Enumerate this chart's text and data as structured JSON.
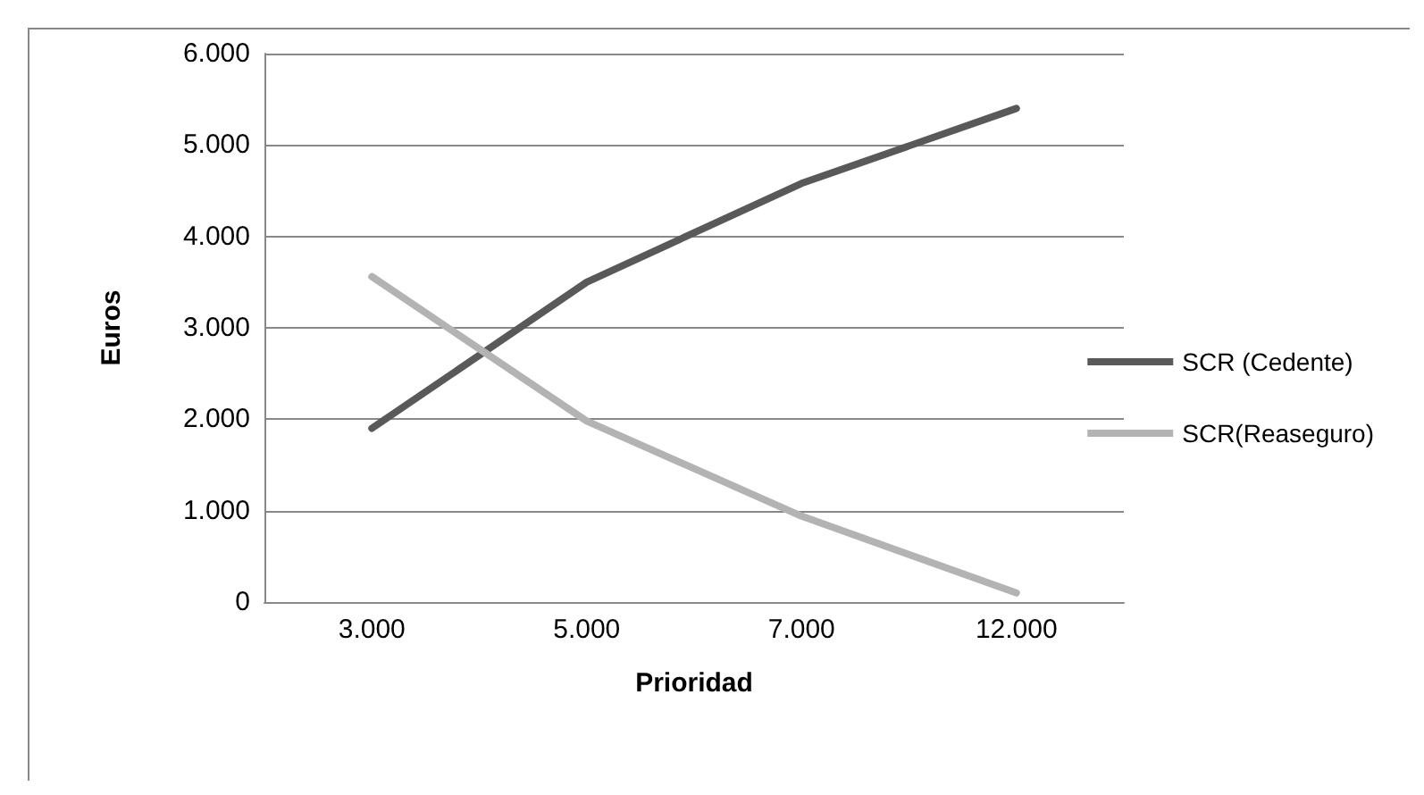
{
  "chart_data": {
    "type": "line",
    "xlabel": "Prioridad",
    "ylabel": "Euros",
    "categories": [
      "3.000",
      "5.000",
      "7.000",
      "12.000"
    ],
    "series": [
      {
        "name": "SCR (Cedente)",
        "color": "#595959",
        "values": [
          1900,
          3500,
          4580,
          5400
        ]
      },
      {
        "name": "SCR(Reaseguro)",
        "color": "#b3b3b3",
        "values": [
          3560,
          1980,
          940,
          100
        ]
      }
    ],
    "ylim": [
      0,
      6000
    ],
    "yticks": [
      {
        "value": 0,
        "label": "0"
      },
      {
        "value": 1000,
        "label": "1.000"
      },
      {
        "value": 2000,
        "label": "2.000"
      },
      {
        "value": 3000,
        "label": "3.000"
      },
      {
        "value": 4000,
        "label": "4.000"
      },
      {
        "value": 5000,
        "label": "5.000"
      },
      {
        "value": 6000,
        "label": "6.000"
      }
    ],
    "grid": "y",
    "legend": "right",
    "marker": "none",
    "line_style": "solid"
  }
}
